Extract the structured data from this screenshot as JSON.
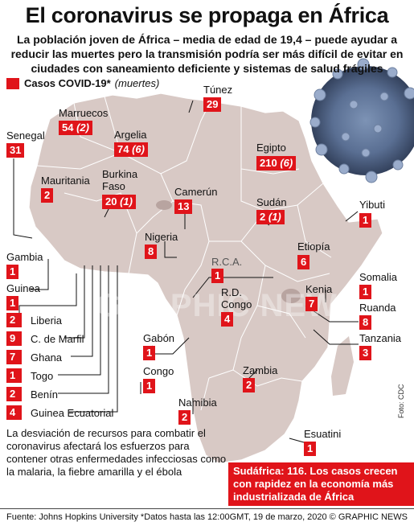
{
  "title": "El coronavirus se propaga en África",
  "subtitle": "La población joven de África – media de edad de 19,4 – puede ayudar a reducir las muertes pero la transmisión podría ser más difícil de evitar en ciudades con saneamiento deficiente y sistemas de salud frágiles",
  "legend": {
    "label": "Casos COVID-19*",
    "sub": "(muertes)"
  },
  "watermark": "GRAPHIC NEWS",
  "map_labels": {
    "rca": "R.C.A."
  },
  "countries": {
    "tunez": {
      "name": "Túnez",
      "value": "29"
    },
    "marruecos": {
      "name": "Marruecos",
      "value": "54",
      "deaths": "(2)"
    },
    "senegal": {
      "name": "Senegal",
      "value": "31"
    },
    "argelia": {
      "name": "Argelia",
      "value": "74",
      "deaths": "(6)"
    },
    "egipto": {
      "name": "Egipto",
      "value": "210",
      "deaths": "(6)"
    },
    "mauritania": {
      "name": "Mauritania",
      "value": "2"
    },
    "burkina": {
      "name": "Burkina\nFaso",
      "value": "20",
      "deaths": "(1)"
    },
    "camerun": {
      "name": "Camerún",
      "value": "13"
    },
    "sudan": {
      "name": "Sudán",
      "value": "2",
      "deaths": "(1)"
    },
    "yibuti": {
      "name": "Yibuti",
      "value": "1"
    },
    "nigeria": {
      "name": "Nigeria",
      "value": "8"
    },
    "rca": {
      "value": "1"
    },
    "etiopia": {
      "name": "Etiopía",
      "value": "6"
    },
    "gambia": {
      "name": "Gambia",
      "value": "1"
    },
    "guinea": {
      "name": "Guinea",
      "value": "1"
    },
    "somalia": {
      "name": "Somalia",
      "value": "1"
    },
    "rdcongo": {
      "name": "R.D.\nCongo",
      "value": "4"
    },
    "kenia": {
      "name": "Kenia",
      "value": "7"
    },
    "ruanda": {
      "name": "Ruanda",
      "value": "8"
    },
    "tanzania": {
      "name": "Tanzania",
      "value": "3"
    },
    "gabon": {
      "name": "Gabón",
      "value": "1"
    },
    "congo": {
      "name": "Congo",
      "value": "1"
    },
    "zambia": {
      "name": "Zambia",
      "value": "2"
    },
    "namibia": {
      "name": "Namibia",
      "value": "2"
    },
    "esuatini": {
      "name": "Esuatini",
      "value": "1"
    }
  },
  "west_list": [
    {
      "value": "2",
      "name": "Liberia"
    },
    {
      "value": "9",
      "name": "C. de Marfil"
    },
    {
      "value": "7",
      "name": "Ghana"
    },
    {
      "value": "1",
      "name": "Togo"
    },
    {
      "value": "2",
      "name": "Benín"
    },
    {
      "value": "4",
      "name": "Guinea Ecuatorial"
    }
  ],
  "note": "La desviación de recursos para combatir el coronavirus afectará los esfuerzos para contener otras enfermedades infecciosas como la malaria, la fiebre amarilla y el ébola",
  "south_africa": "Sudáfrica: 116. Los casos crecen con rapidez en la economía más industrializada de África",
  "photo_credit": "Foto: CDC",
  "footer": {
    "source": "Fuente: Johns Hopkins University *Datos hasta las 12:00GMT, 19 de marzo, 2020",
    "copyright": "© GRAPHIC NEWS"
  },
  "colors": {
    "case_red": "#e0141a",
    "land": "#d8c9c5",
    "land_dark": "#b8a4a0",
    "sea": "#ffffff"
  }
}
